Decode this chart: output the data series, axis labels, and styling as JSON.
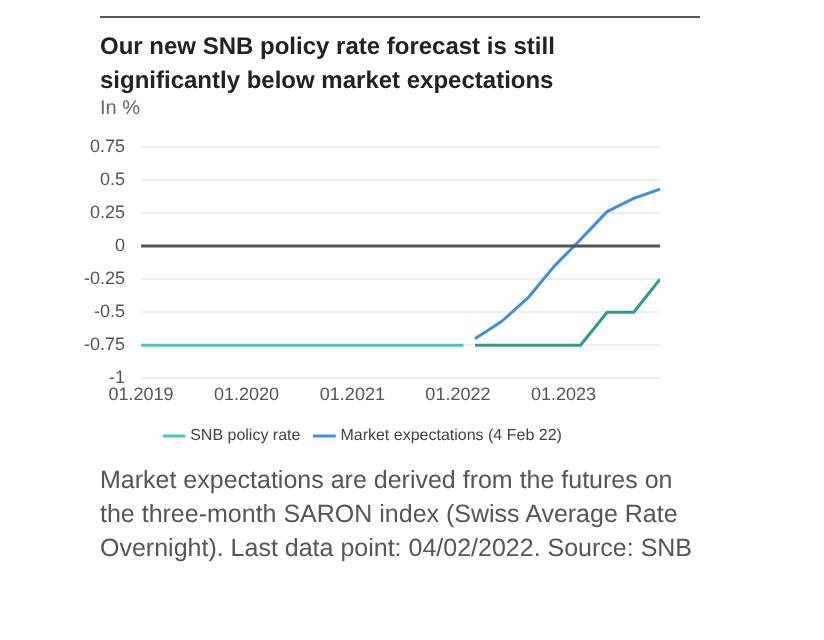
{
  "chart_data": {
    "type": "line",
    "title": "Our new SNB policy rate forecast is still significantly below market expectations",
    "subtitle": "In %",
    "xlim": [
      "2019-01",
      "2023-12"
    ],
    "xticks": [
      {
        "value": "2019-01",
        "label": "01.2019"
      },
      {
        "value": "2020-01",
        "label": "01.2020"
      },
      {
        "value": "2021-01",
        "label": "01.2021"
      },
      {
        "value": "2022-01",
        "label": "01.2022"
      },
      {
        "value": "2023-01",
        "label": "01.2023"
      }
    ],
    "ylim": [
      -1,
      0.75
    ],
    "yticks": [
      -1,
      -0.75,
      -0.5,
      -0.25,
      0,
      0.25,
      0.5,
      0.75
    ],
    "grid": "y",
    "legend": "bottom",
    "marker": "none",
    "line_style": "solid",
    "ref_lines": [
      {
        "axis": "y",
        "value": 0,
        "color": "#555555"
      }
    ],
    "series": [
      {
        "name": "SNB policy rate",
        "color": "#3fcbc3",
        "x": [
          "2019-01",
          "2022-01-20"
        ],
        "values": [
          -0.75,
          -0.75
        ]
      },
      {
        "color": "#2a9d8f",
        "x": [
          "2022-03",
          "2023-03",
          "2023-06",
          "2023-09",
          "2023-12"
        ],
        "values": [
          -0.75,
          -0.75,
          -0.5,
          -0.5,
          -0.25
        ]
      },
      {
        "name": "Market expectations (4 Feb 22)",
        "color": "#3b8fe0",
        "x": [
          "2022-03",
          "2022-06",
          "2022-09",
          "2022-12",
          "2023-02-25",
          "2023-06",
          "2023-09",
          "2023-12"
        ],
        "values": [
          -0.7,
          -0.57,
          -0.39,
          -0.15,
          0.04,
          0.26,
          0.36,
          0.43
        ]
      }
    ],
    "annotations": [
      "Market expectations are derived from the futures on the three-month SARON index (Swiss Average Rate Overnight). Last data point: 04/02/2022. Source: SNB"
    ]
  }
}
